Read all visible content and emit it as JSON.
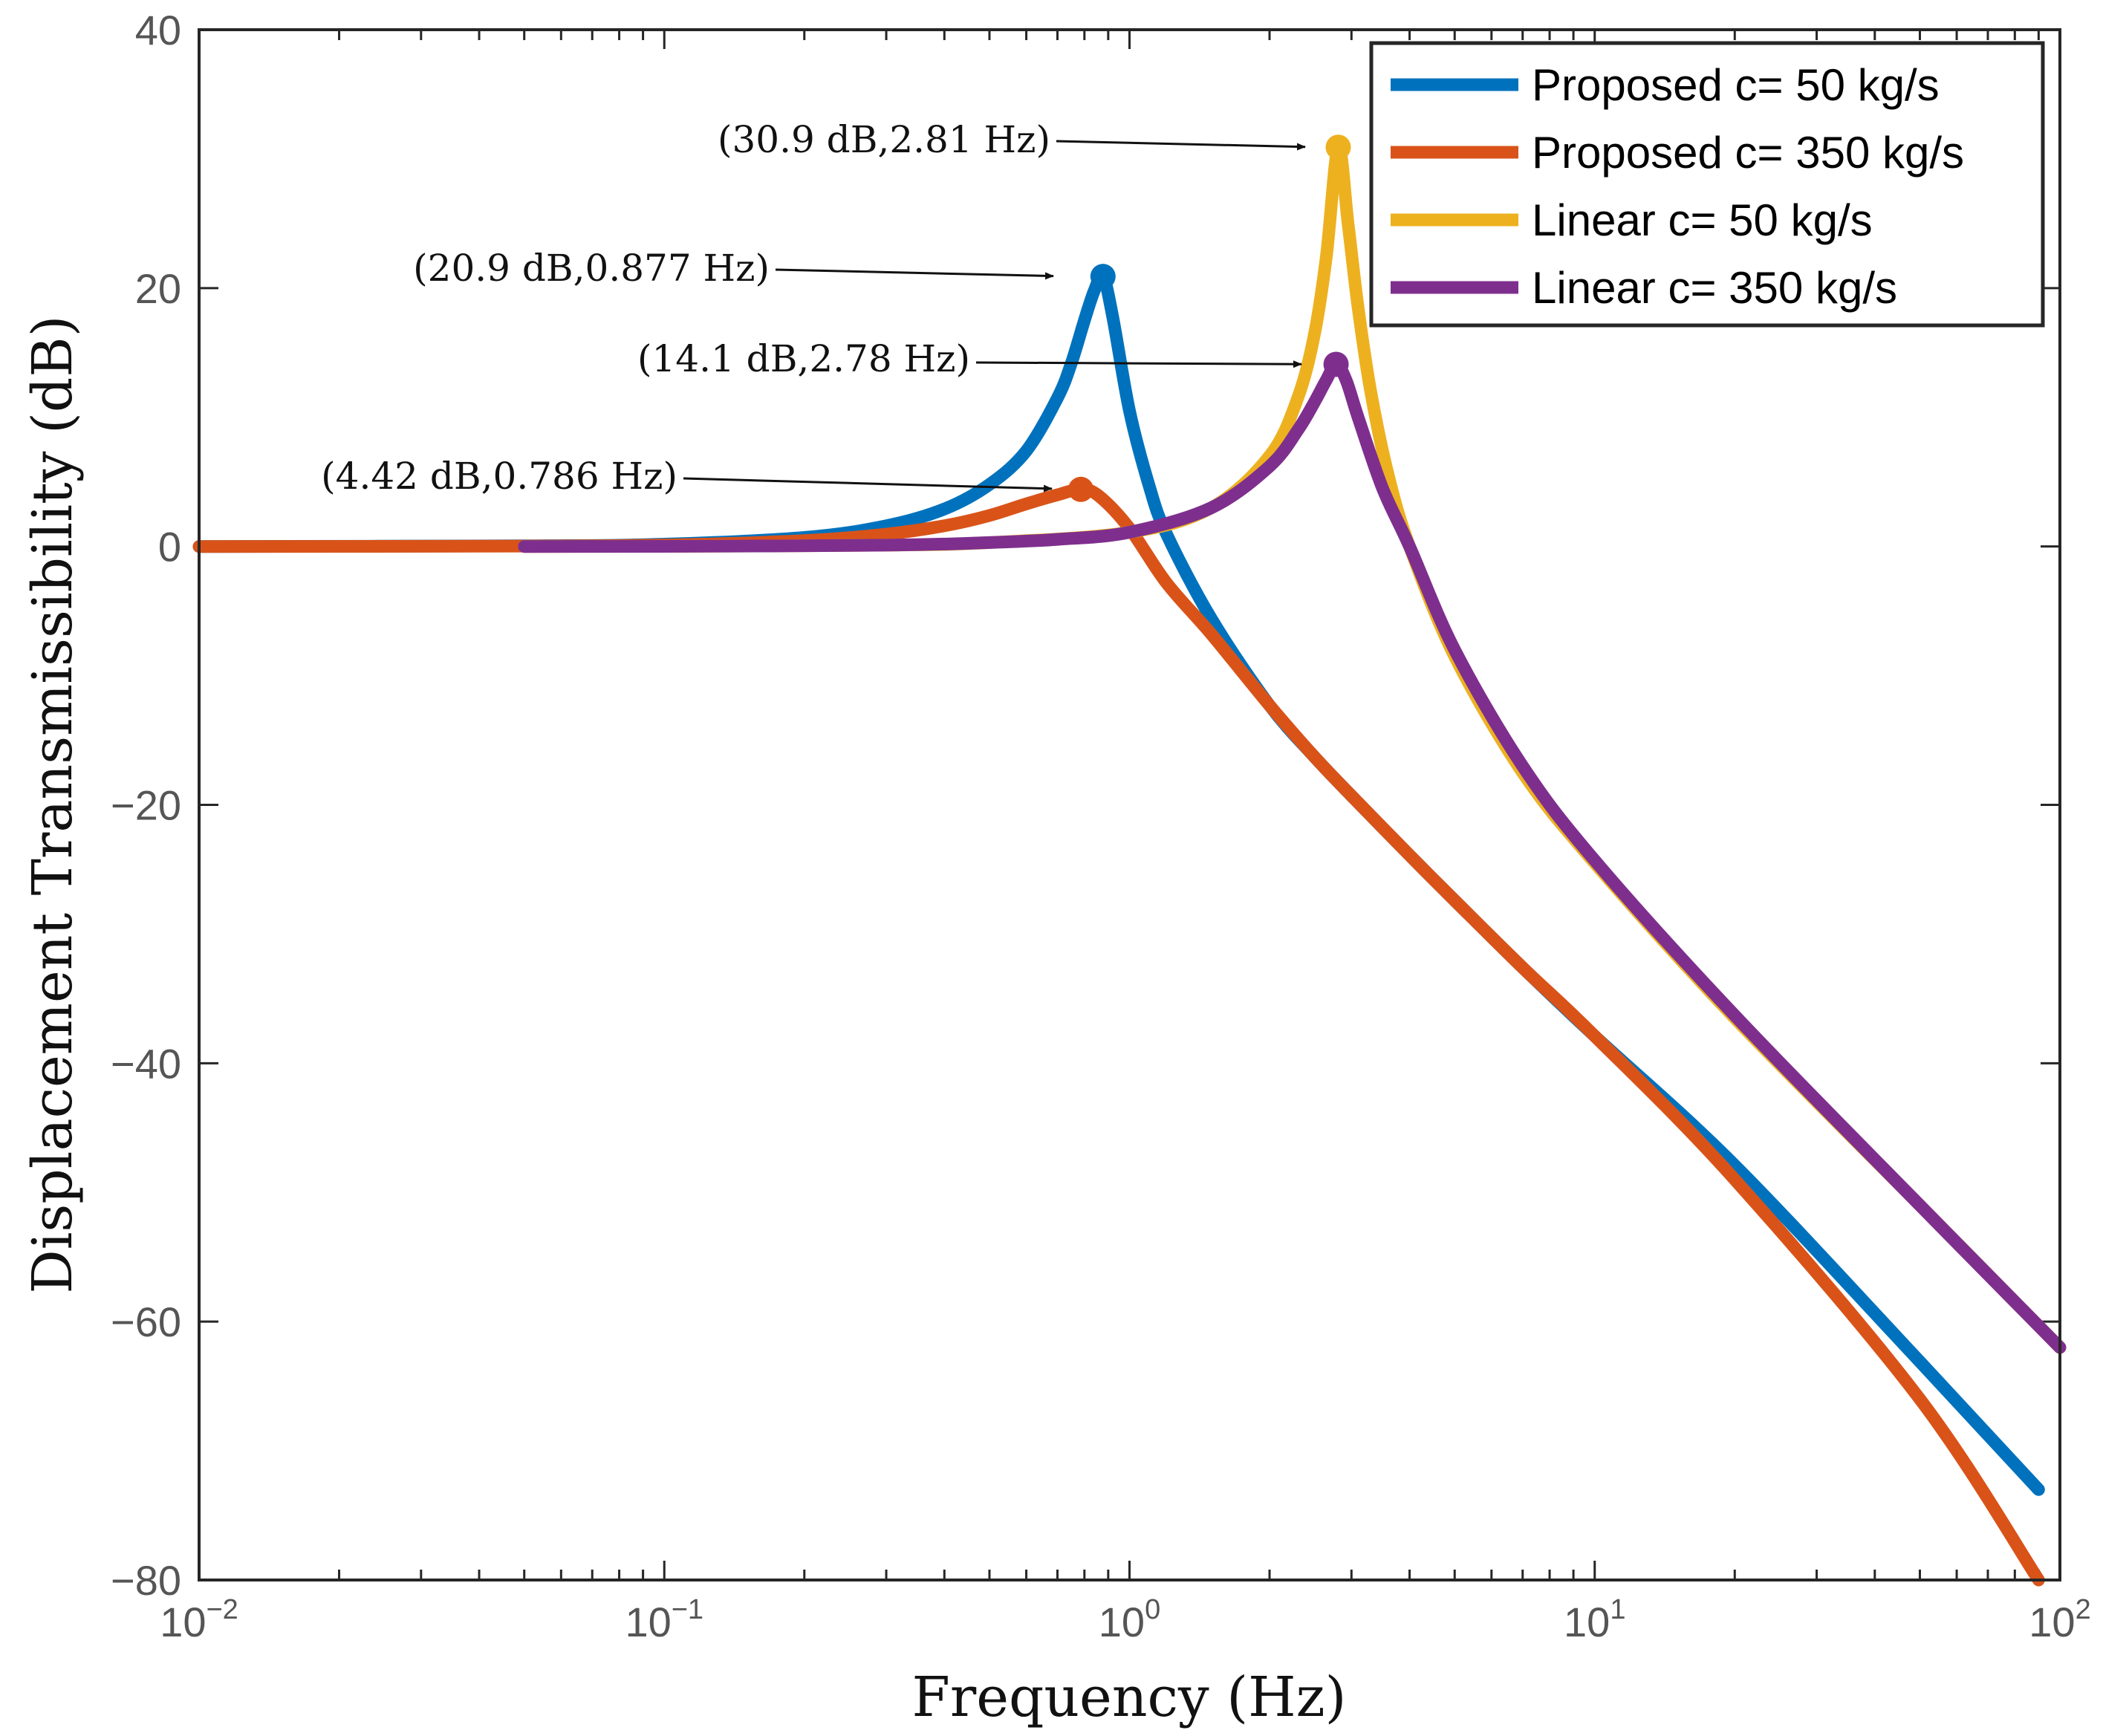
{
  "chart_data": {
    "type": "line",
    "title": "",
    "xlabel": "Frequency  (Hz)",
    "ylabel": "Displacement Transmissibility (dB)",
    "xscale": "log",
    "xlim": [
      0.01,
      100
    ],
    "ylim": [
      -80,
      40
    ],
    "grid": false,
    "legend_position": "top-right",
    "x_ticks": [
      {
        "value": 0.01,
        "base": "10",
        "exp": "−2"
      },
      {
        "value": 0.1,
        "base": "10",
        "exp": "−1"
      },
      {
        "value": 1,
        "base": "10",
        "exp": "0"
      },
      {
        "value": 10,
        "base": "10",
        "exp": "1"
      },
      {
        "value": 100,
        "base": "10",
        "exp": "2"
      }
    ],
    "y_ticks": [
      {
        "value": 40,
        "label": "40"
      },
      {
        "value": 20,
        "label": "20"
      },
      {
        "value": 0,
        "label": "0"
      },
      {
        "value": -20,
        "label": "−20"
      },
      {
        "value": -40,
        "label": "−40"
      },
      {
        "value": -60,
        "label": "−60"
      },
      {
        "value": -80,
        "label": "−80"
      }
    ],
    "series": [
      {
        "name": "Proposed c= 50 kg/s",
        "color": "#0072BD",
        "x": [
          0.01,
          0.05,
          0.1,
          0.2,
          0.3,
          0.4,
          0.5,
          0.6,
          0.7,
          0.75,
          0.8,
          0.84,
          0.877,
          0.92,
          1.0,
          1.1,
          1.2,
          1.5,
          2.0,
          2.5,
          3.0,
          4.0,
          5.0,
          7.0,
          10.0,
          20.0,
          50.0,
          90.0
        ],
        "values": [
          0.0,
          0.05,
          0.18,
          0.7,
          1.6,
          2.9,
          4.8,
          7.4,
          11.5,
          14.2,
          17.5,
          19.8,
          20.9,
          17.8,
          10.5,
          4.8,
          1.0,
          -5.6,
          -12.3,
          -16.3,
          -19.3,
          -23.9,
          -27.4,
          -32.6,
          -37.9,
          -47.9,
          -63.1,
          -73.0
        ]
      },
      {
        "name": "Proposed c= 350 kg/s",
        "color": "#D95319",
        "x": [
          0.01,
          0.05,
          0.1,
          0.2,
          0.3,
          0.4,
          0.5,
          0.6,
          0.7,
          0.786,
          0.86,
          1.0,
          1.2,
          1.5,
          2.0,
          2.5,
          3.0,
          4.0,
          5.0,
          7.0,
          10.0,
          20.0,
          50.0,
          90.0
        ],
        "values": [
          0.0,
          0.03,
          0.12,
          0.45,
          0.95,
          1.6,
          2.4,
          3.3,
          4.0,
          4.42,
          3.9,
          1.4,
          -2.8,
          -6.8,
          -12.3,
          -16.3,
          -19.3,
          -23.9,
          -27.4,
          -32.6,
          -37.9,
          -49.0,
          -66.0,
          -80.0
        ]
      },
      {
        "name": "Linear c= 50 kg/s",
        "color": "#EDB120",
        "x": [
          0.05,
          0.1,
          0.3,
          0.5,
          1.0,
          1.5,
          2.0,
          2.3,
          2.5,
          2.65,
          2.81,
          2.95,
          3.1,
          3.3,
          3.6,
          4.0,
          5.0,
          7.0,
          10.0,
          20.0,
          50.0,
          100.0
        ],
        "values": [
          0.0,
          0.01,
          0.1,
          0.3,
          1.1,
          3.0,
          7.0,
          11.5,
          16.5,
          22.5,
          30.9,
          25.0,
          18.5,
          12.0,
          5.5,
          0.0,
          -8.5,
          -17.5,
          -24.5,
          -36.5,
          -51.0,
          -62.0
        ]
      },
      {
        "name": "Linear c= 350 kg/s",
        "color": "#7E2F8E",
        "x": [
          0.05,
          0.1,
          0.3,
          0.5,
          0.7,
          1.0,
          1.5,
          2.0,
          2.3,
          2.5,
          2.65,
          2.78,
          2.92,
          3.1,
          3.5,
          4.0,
          5.0,
          7.0,
          10.0,
          20.0,
          50.0,
          100.0
        ],
        "values": [
          0.0,
          0.01,
          0.1,
          0.3,
          0.55,
          1.1,
          3.0,
          6.2,
          9.0,
          11.2,
          12.9,
          14.1,
          12.9,
          10.0,
          4.5,
          0.0,
          -8.0,
          -17.0,
          -24.3,
          -36.3,
          -51.0,
          -62.0
        ]
      }
    ],
    "markers": [
      {
        "series": "Proposed c= 50 kg/s",
        "x": 0.877,
        "y": 20.9,
        "color": "#0072BD"
      },
      {
        "series": "Proposed c= 350 kg/s",
        "x": 0.786,
        "y": 4.42,
        "color": "#D95319"
      },
      {
        "series": "Linear c= 50 kg/s",
        "x": 2.81,
        "y": 30.9,
        "color": "#EDB120"
      },
      {
        "series": "Linear c= 350 kg/s",
        "x": 2.78,
        "y": 14.1,
        "color": "#7E2F8E"
      }
    ],
    "annotations": [
      {
        "text": "(30.9 dB,2.81 Hz)",
        "x": 2.81,
        "y": 30.9
      },
      {
        "text": "(20.9 dB,0.877 Hz)",
        "x": 0.877,
        "y": 20.9
      },
      {
        "text": "(14.1 dB,2.78 Hz)",
        "x": 2.78,
        "y": 14.1
      },
      {
        "text": "(4.42 dB,0.786 Hz)",
        "x": 0.786,
        "y": 4.42
      }
    ]
  }
}
